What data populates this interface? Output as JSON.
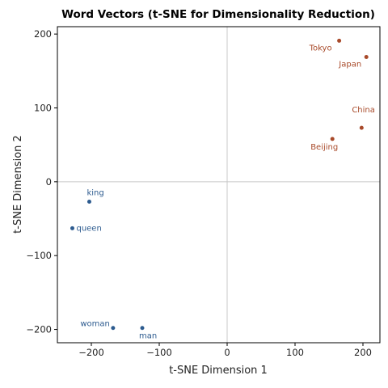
{
  "chart_data": {
    "type": "scatter",
    "title": "Word Vectors (t-SNE for Dimensionality Reduction)",
    "xlabel": "t-SNE Dimension 1",
    "ylabel": "t-SNE Dimension 2",
    "xlim": [
      -250,
      225
    ],
    "ylim": [
      -218,
      210
    ],
    "xticks": [
      -200,
      -100,
      0,
      100,
      200
    ],
    "yticks": [
      -200,
      -100,
      0,
      100,
      200
    ],
    "zero_lines": true,
    "grid": false,
    "groups": [
      {
        "color": "#2d5b8f",
        "points": [
          {
            "label": "king",
            "x": -203,
            "y": -27
          },
          {
            "label": "queen",
            "x": -228,
            "y": -63
          },
          {
            "label": "man",
            "x": -125,
            "y": -198
          },
          {
            "label": "woman",
            "x": -168,
            "y": -198
          }
        ]
      },
      {
        "color": "#a84a2a",
        "points": [
          {
            "label": "Tokyo",
            "x": 165,
            "y": 191
          },
          {
            "label": "Japan",
            "x": 205,
            "y": 169
          },
          {
            "label": "China",
            "x": 198,
            "y": 73
          },
          {
            "label": "Beijing",
            "x": 155,
            "y": 58
          }
        ]
      }
    ]
  }
}
